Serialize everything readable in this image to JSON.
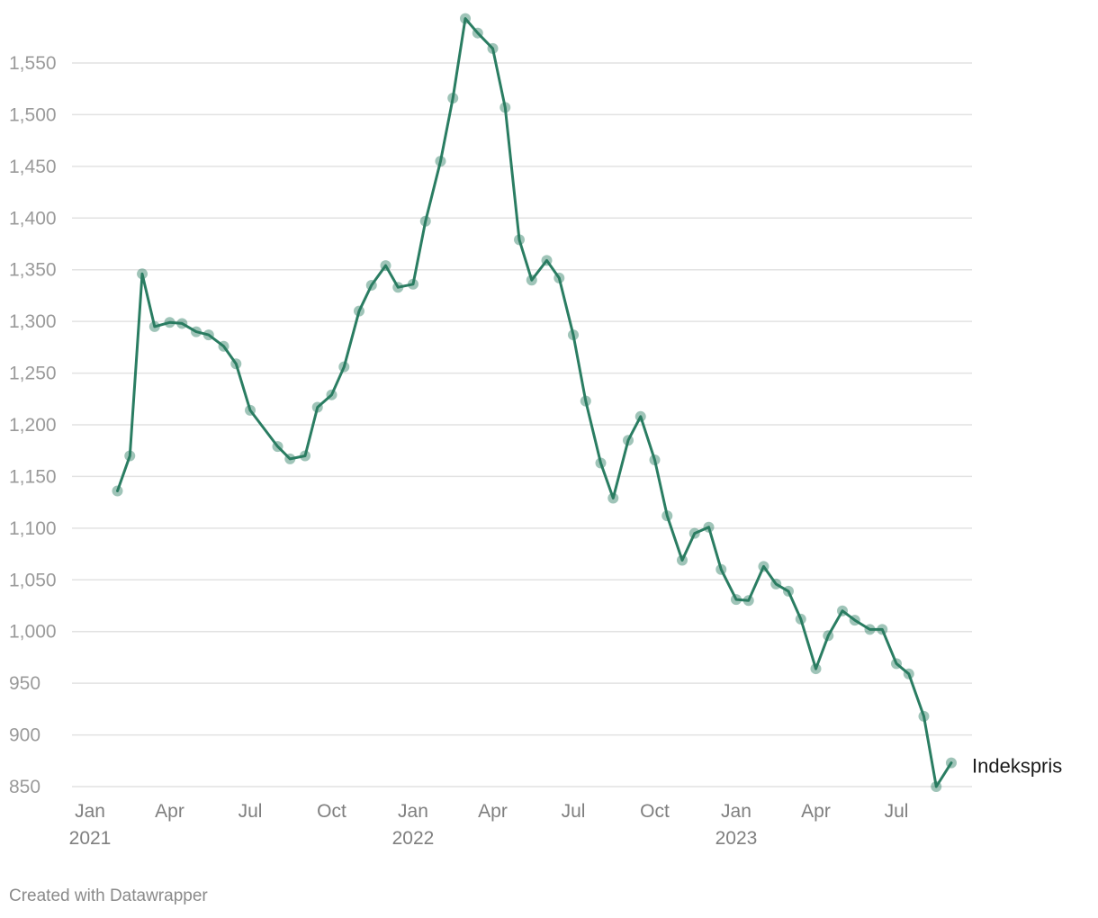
{
  "chart_data": {
    "type": "line",
    "x_start": "2021-02",
    "x": [
      "2021-02-01",
      "2021-02-15",
      "2021-03-01",
      "2021-03-15",
      "2021-04-01",
      "2021-04-15",
      "2021-05-01",
      "2021-05-15",
      "2021-06-01",
      "2021-06-15",
      "2021-07-01",
      "2021-08-01",
      "2021-08-15",
      "2021-09-01",
      "2021-09-15",
      "2021-10-01",
      "2021-10-15",
      "2021-11-01",
      "2021-11-15",
      "2021-12-01",
      "2021-12-15",
      "2022-01-01",
      "2022-01-15",
      "2022-02-01",
      "2022-02-15",
      "2022-03-01",
      "2022-03-15",
      "2022-04-01",
      "2022-04-15",
      "2022-05-01",
      "2022-05-15",
      "2022-06-01",
      "2022-06-15",
      "2022-07-01",
      "2022-07-15",
      "2022-08-01",
      "2022-08-15",
      "2022-09-01",
      "2022-09-15",
      "2022-10-01",
      "2022-10-15",
      "2022-11-01",
      "2022-11-15",
      "2022-12-01",
      "2022-12-15",
      "2023-01-01",
      "2023-01-15",
      "2023-02-01",
      "2023-02-15",
      "2023-03-01",
      "2023-03-15",
      "2023-04-01",
      "2023-04-15",
      "2023-05-01",
      "2023-05-15",
      "2023-06-01",
      "2023-06-15",
      "2023-07-01",
      "2023-07-15",
      "2023-08-01",
      "2023-08-15",
      "2023-09-01"
    ],
    "series": [
      {
        "name": "Indekspris",
        "color": "#2a7d62",
        "values": [
          1136,
          1170,
          1346,
          1295,
          1299,
          1298,
          1290,
          1287,
          1276,
          1259,
          1214,
          1179,
          1167,
          1170,
          1217,
          1229,
          1256,
          1310,
          1335,
          1354,
          1333,
          1336,
          1397,
          1455,
          1516,
          1593,
          1579,
          1564,
          1507,
          1379,
          1340,
          1359,
          1342,
          1287,
          1223,
          1163,
          1129,
          1185,
          1208,
          1166,
          1112,
          1069,
          1095,
          1101,
          1060,
          1031,
          1030,
          1063,
          1046,
          1039,
          1012,
          964,
          996,
          1020,
          1011,
          1002,
          1002,
          969,
          959,
          918,
          850,
          873
        ]
      }
    ],
    "ylim": [
      845,
      1600
    ],
    "y_ticks": [
      "850",
      "900",
      "950",
      "1,000",
      "1,050",
      "1,100",
      "1,150",
      "1,200",
      "1,250",
      "1,300",
      "1,350",
      "1,400",
      "1,450",
      "1,500",
      "1,550"
    ],
    "x_ticks": [
      {
        "date": "2021-01-01",
        "label": "Jan",
        "year": "2021"
      },
      {
        "date": "2021-04-01",
        "label": "Apr",
        "year": ""
      },
      {
        "date": "2021-07-01",
        "label": "Jul",
        "year": ""
      },
      {
        "date": "2021-10-01",
        "label": "Oct",
        "year": ""
      },
      {
        "date": "2022-01-01",
        "label": "Jan",
        "year": "2022"
      },
      {
        "date": "2022-04-01",
        "label": "Apr",
        "year": ""
      },
      {
        "date": "2022-07-01",
        "label": "Jul",
        "year": ""
      },
      {
        "date": "2022-10-01",
        "label": "Oct",
        "year": ""
      },
      {
        "date": "2023-01-01",
        "label": "Jan",
        "year": "2023"
      },
      {
        "date": "2023-04-01",
        "label": "Apr",
        "year": ""
      },
      {
        "date": "2023-07-01",
        "label": "Jul",
        "year": ""
      }
    ],
    "grid": true
  },
  "footer": {
    "credit": "Created with Datawrapper"
  }
}
